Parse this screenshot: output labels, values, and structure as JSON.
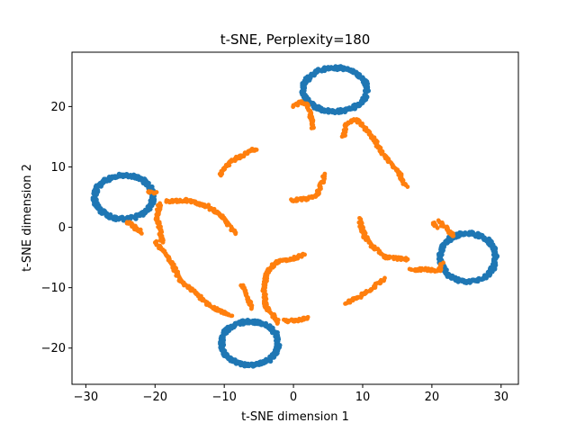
{
  "chart_data": {
    "type": "scatter",
    "title": "t-SNE, Perplexity=180",
    "xlabel": "t-SNE dimension 1",
    "ylabel": "t-SNE dimension 2",
    "xlim": [
      -32,
      32.5
    ],
    "ylim": [
      -26,
      29
    ],
    "xticks": [
      -30,
      -20,
      -10,
      0,
      10,
      20,
      30
    ],
    "yticks": [
      -20,
      -10,
      0,
      10,
      20
    ],
    "xtick_labels": [
      "−30",
      "−20",
      "−10",
      "0",
      "10",
      "20",
      "30"
    ],
    "ytick_labels": [
      "−20",
      "−10",
      "0",
      "10",
      "20"
    ],
    "grid": false,
    "legend": "none",
    "series": [
      {
        "color": "#1f77b4",
        "rings": [
          {
            "cx": 6.0,
            "cy": 22.8,
            "rx": 4.6,
            "ry": 3.6
          },
          {
            "cx": -24.5,
            "cy": 5.0,
            "rx": 4.2,
            "ry": 3.6
          },
          {
            "cx": -6.3,
            "cy": -19.2,
            "rx": 4.1,
            "ry": 3.6
          },
          {
            "cx": 25.2,
            "cy": -5.0,
            "rx": 4.0,
            "ry": 4.0
          }
        ]
      },
      {
        "color": "#ff7f0e",
        "curves": [
          [
            [
              -10.5,
              8.8
            ],
            [
              -9.2,
              10.8
            ],
            [
              -7.5,
              11.8
            ],
            [
              -5.5,
              13.0
            ]
          ],
          [
            [
              -19.8,
              5.6
            ],
            [
              -21.0,
              5.8
            ]
          ],
          [
            [
              -18.5,
              4.3
            ],
            [
              -15.5,
              4.5
            ],
            [
              -12.5,
              3.5
            ],
            [
              -10.3,
              1.8
            ],
            [
              -8.5,
              -1.0
            ]
          ],
          [
            [
              -19.3,
              3.8
            ],
            [
              -19.8,
              1.8
            ],
            [
              -19.3,
              -0.3
            ],
            [
              -19.0,
              -2.5
            ]
          ],
          [
            [
              -24.0,
              0.8
            ],
            [
              -23.0,
              0.0
            ],
            [
              -22.0,
              -0.8
            ]
          ],
          [
            [
              -20.0,
              -2.5
            ],
            [
              -18.0,
              -5.0
            ],
            [
              -16.3,
              -9.0
            ],
            [
              -14.0,
              -11.0
            ],
            [
              -12.0,
              -13.0
            ],
            [
              -10.5,
              -14.0
            ],
            [
              -9.0,
              -14.7
            ]
          ],
          [
            [
              -6.0,
              -13.3
            ],
            [
              -6.7,
              -11.5
            ],
            [
              -7.5,
              -9.5
            ]
          ],
          [
            [
              -2.2,
              -15.8
            ],
            [
              -4.0,
              -13.0
            ],
            [
              -4.3,
              -10.0
            ],
            [
              -3.8,
              -7.5
            ],
            [
              -2.5,
              -5.8
            ],
            [
              0.0,
              -5.2
            ],
            [
              1.5,
              -4.5
            ]
          ],
          [
            [
              -1.3,
              -15.5
            ],
            [
              0.5,
              -15.5
            ],
            [
              2.0,
              -15.0
            ]
          ],
          [
            [
              -0.3,
              4.5
            ],
            [
              2.0,
              4.7
            ],
            [
              3.5,
              5.5
            ],
            [
              4.5,
              8.8
            ]
          ],
          [
            [
              0.0,
              20.0
            ],
            [
              1.3,
              20.8
            ],
            [
              2.0,
              20.2
            ],
            [
              2.5,
              18.5
            ],
            [
              2.8,
              16.5
            ]
          ],
          [
            [
              7.2,
              15.0
            ],
            [
              7.5,
              17.0
            ],
            [
              9.0,
              17.8
            ],
            [
              10.8,
              16.0
            ],
            [
              13.0,
              12.0
            ],
            [
              15.0,
              9.5
            ],
            [
              16.3,
              6.8
            ]
          ],
          [
            [
              9.5,
              1.3
            ],
            [
              10.3,
              -1.5
            ],
            [
              11.5,
              -3.3
            ],
            [
              13.5,
              -5.0
            ],
            [
              16.5,
              -5.3
            ]
          ],
          [
            [
              7.5,
              -12.5
            ],
            [
              9.5,
              -11.5
            ],
            [
              11.5,
              -10.0
            ],
            [
              13.0,
              -8.5
            ]
          ],
          [
            [
              17.0,
              -7.0
            ],
            [
              19.5,
              -7.0
            ],
            [
              21.0,
              -7.2
            ],
            [
              21.5,
              -6.0
            ]
          ],
          [
            [
              20.2,
              0.8
            ],
            [
              20.7,
              0.0
            ]
          ],
          [
            [
              21.0,
              1.0
            ],
            [
              22.0,
              0.0
            ],
            [
              23.2,
              -1.5
            ]
          ]
        ]
      }
    ]
  }
}
